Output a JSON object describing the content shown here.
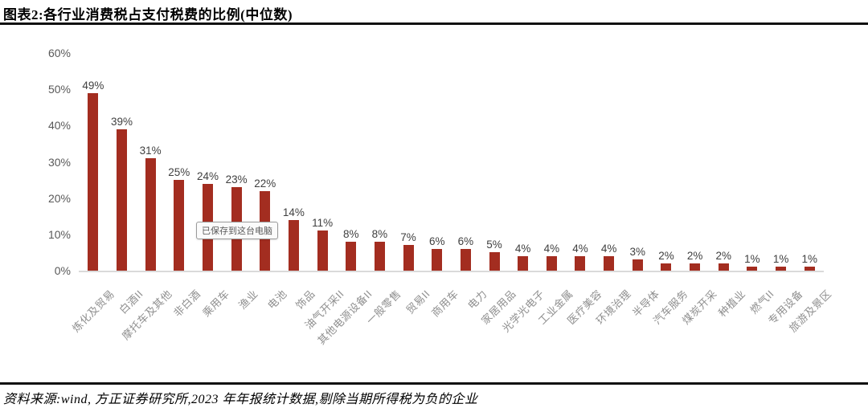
{
  "header": {
    "title": "图表2:各行业消费税占支付税费的比例(中位数)"
  },
  "footer": {
    "source_note": "资料来源:wind, 方正证券研究所,2023 年年报统计数据,剔除当期所得税为负的企业"
  },
  "tooltip": {
    "text": "已保存到这台电脑"
  },
  "colors": {
    "bar": "#A32D20",
    "axis_line": "#DADADA",
    "value_label": "#404040",
    "y_tick_label": "#595959",
    "x_tick_label": "#8F8F8F"
  },
  "chart_data": {
    "type": "bar",
    "title": "图表2:各行业消费税占支付税费的比例(中位数)",
    "xlabel": "",
    "ylabel": "",
    "ylim": [
      0,
      60
    ],
    "grid": false,
    "legend_position": "none",
    "y_tick_labels": [
      "60%",
      "50%",
      "40%",
      "30%",
      "20%",
      "10%",
      "0%"
    ],
    "y_tick_values": [
      60,
      50,
      40,
      30,
      20,
      10,
      0
    ],
    "categories": [
      "炼化及贸易",
      "白酒II",
      "摩托车及其他",
      "非白酒",
      "乘用车",
      "渔业",
      "电池",
      "饰品",
      "油气开采II",
      "其他电源设备II",
      "一般零售",
      "贸易II",
      "商用车",
      "电力",
      "家居用品",
      "光学光电子",
      "工业金属",
      "医疗美容",
      "环境治理",
      "半导体",
      "汽车服务",
      "煤炭开采",
      "种植业",
      "燃气II",
      "专用设备",
      "旅游及景区"
    ],
    "values": [
      49,
      39,
      31,
      25,
      24,
      23,
      22,
      14,
      11,
      8,
      8,
      7,
      6,
      6,
      5,
      4,
      4,
      4,
      4,
      3,
      2,
      2,
      2,
      1,
      1,
      1
    ],
    "value_labels": [
      "49%",
      "39%",
      "31%",
      "25%",
      "24%",
      "23%",
      "22%",
      "14%",
      "11%",
      "8%",
      "8%",
      "7%",
      "6%",
      "6%",
      "5%",
      "4%",
      "4%",
      "4%",
      "4%",
      "3%",
      "2%",
      "2%",
      "2%",
      "1%",
      "1%",
      "1%"
    ]
  }
}
